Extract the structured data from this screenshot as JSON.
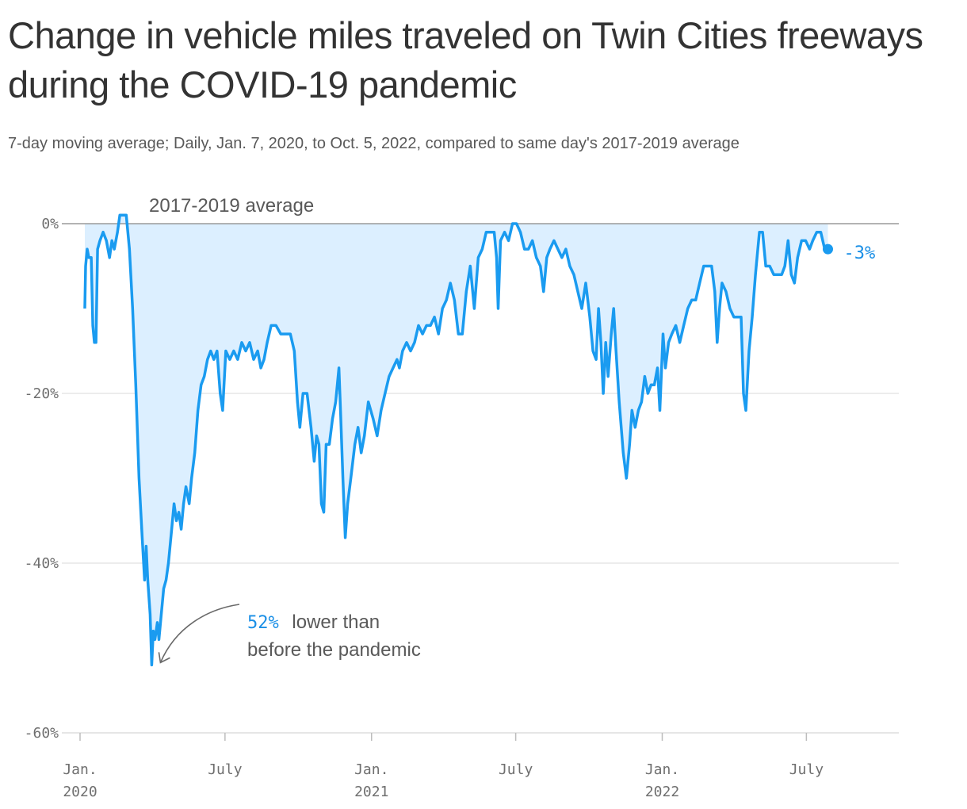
{
  "title": "Change in vehicle miles traveled on Twin Cities freeways during the COVID-19 pandemic",
  "subtitle": "7-day moving average; Daily, Jan. 7, 2020, to Oct. 5, 2022, compared to same day's 2017-2019 average",
  "colors": {
    "line": "#1a9bf0",
    "area": "#dcefff",
    "grid": "#e0e0e0",
    "baseline": "#9a9a9a",
    "text": "#333333",
    "muted": "#6f6f6f"
  },
  "chart_data": {
    "type": "area",
    "x_axis": {
      "start": "2020-01-01",
      "end": "2022-10-31",
      "ticks": [
        {
          "date": "2020-01-01",
          "label": "Jan.",
          "sublabel": "2020"
        },
        {
          "date": "2020-07-01",
          "label": "July",
          "sublabel": ""
        },
        {
          "date": "2021-01-01",
          "label": "Jan.",
          "sublabel": "2021"
        },
        {
          "date": "2021-07-01",
          "label": "July",
          "sublabel": ""
        },
        {
          "date": "2022-01-01",
          "label": "Jan.",
          "sublabel": "2022"
        },
        {
          "date": "2022-07-01",
          "label": "July",
          "sublabel": ""
        }
      ]
    },
    "y_axis": {
      "unit": "%",
      "ylim": [
        -60,
        0
      ],
      "ticks": [
        {
          "value": 0,
          "label": "0%"
        },
        {
          "value": -20,
          "label": "-20%"
        },
        {
          "value": -40,
          "label": "-40%"
        },
        {
          "value": -60,
          "label": "-60%"
        }
      ]
    },
    "baseline_label": "2017-2019 average",
    "series": [
      {
        "points": [
          [
            "2020-01-07",
            -10
          ],
          [
            "2020-01-08",
            -5
          ],
          [
            "2020-01-10",
            -3
          ],
          [
            "2020-01-12",
            -4
          ],
          [
            "2020-01-15",
            -4
          ],
          [
            "2020-01-17",
            -12
          ],
          [
            "2020-01-19",
            -14
          ],
          [
            "2020-01-21",
            -14
          ],
          [
            "2020-01-23",
            -3
          ],
          [
            "2020-01-26",
            -2
          ],
          [
            "2020-01-30",
            -1
          ],
          [
            "2020-02-03",
            -2
          ],
          [
            "2020-02-07",
            -4
          ],
          [
            "2020-02-10",
            -2
          ],
          [
            "2020-02-13",
            -3
          ],
          [
            "2020-02-17",
            -1
          ],
          [
            "2020-02-20",
            1
          ],
          [
            "2020-02-24",
            1
          ],
          [
            "2020-02-28",
            1
          ],
          [
            "2020-03-03",
            -3
          ],
          [
            "2020-03-07",
            -10
          ],
          [
            "2020-03-11",
            -19
          ],
          [
            "2020-03-15",
            -30
          ],
          [
            "2020-03-19",
            -37
          ],
          [
            "2020-03-22",
            -42
          ],
          [
            "2020-03-24",
            -38
          ],
          [
            "2020-03-26",
            -42
          ],
          [
            "2020-03-29",
            -46
          ],
          [
            "2020-03-31",
            -52
          ],
          [
            "2020-04-02",
            -48
          ],
          [
            "2020-04-04",
            -49
          ],
          [
            "2020-04-07",
            -47
          ],
          [
            "2020-04-09",
            -49
          ],
          [
            "2020-04-12",
            -46
          ],
          [
            "2020-04-15",
            -43
          ],
          [
            "2020-04-18",
            -42
          ],
          [
            "2020-04-21",
            -40
          ],
          [
            "2020-04-25",
            -36
          ],
          [
            "2020-04-28",
            -33
          ],
          [
            "2020-05-01",
            -35
          ],
          [
            "2020-05-04",
            -34
          ],
          [
            "2020-05-07",
            -36
          ],
          [
            "2020-05-10",
            -33
          ],
          [
            "2020-05-13",
            -31
          ],
          [
            "2020-05-17",
            -33
          ],
          [
            "2020-05-20",
            -30
          ],
          [
            "2020-05-24",
            -27
          ],
          [
            "2020-05-28",
            -22
          ],
          [
            "2020-06-01",
            -19
          ],
          [
            "2020-06-05",
            -18
          ],
          [
            "2020-06-09",
            -16
          ],
          [
            "2020-06-13",
            -15
          ],
          [
            "2020-06-17",
            -16
          ],
          [
            "2020-06-21",
            -15
          ],
          [
            "2020-06-25",
            -20
          ],
          [
            "2020-06-28",
            -22
          ],
          [
            "2020-07-02",
            -15
          ],
          [
            "2020-07-07",
            -16
          ],
          [
            "2020-07-12",
            -15
          ],
          [
            "2020-07-17",
            -16
          ],
          [
            "2020-07-22",
            -14
          ],
          [
            "2020-07-27",
            -15
          ],
          [
            "2020-08-01",
            -14
          ],
          [
            "2020-08-06",
            -16
          ],
          [
            "2020-08-11",
            -15
          ],
          [
            "2020-08-15",
            -17
          ],
          [
            "2020-08-19",
            -16
          ],
          [
            "2020-08-23",
            -14
          ],
          [
            "2020-08-28",
            -12
          ],
          [
            "2020-09-03",
            -12
          ],
          [
            "2020-09-09",
            -13
          ],
          [
            "2020-09-15",
            -13
          ],
          [
            "2020-09-21",
            -13
          ],
          [
            "2020-09-26",
            -15
          ],
          [
            "2020-09-30",
            -21
          ],
          [
            "2020-10-03",
            -24
          ],
          [
            "2020-10-07",
            -20
          ],
          [
            "2020-10-12",
            -20
          ],
          [
            "2020-10-17",
            -24
          ],
          [
            "2020-10-21",
            -28
          ],
          [
            "2020-10-24",
            -25
          ],
          [
            "2020-10-27",
            -26
          ],
          [
            "2020-10-30",
            -33
          ],
          [
            "2020-11-02",
            -34
          ],
          [
            "2020-11-05",
            -26
          ],
          [
            "2020-11-09",
            -26
          ],
          [
            "2020-11-13",
            -23
          ],
          [
            "2020-11-17",
            -21
          ],
          [
            "2020-11-21",
            -17
          ],
          [
            "2020-11-23",
            -22
          ],
          [
            "2020-11-26",
            -30
          ],
          [
            "2020-11-29",
            -37
          ],
          [
            "2020-12-02",
            -33
          ],
          [
            "2020-12-06",
            -30
          ],
          [
            "2020-12-11",
            -26
          ],
          [
            "2020-12-15",
            -24
          ],
          [
            "2020-12-19",
            -27
          ],
          [
            "2020-12-23",
            -25
          ],
          [
            "2020-12-28",
            -21
          ],
          [
            "2021-01-03",
            -23
          ],
          [
            "2021-01-08",
            -25
          ],
          [
            "2021-01-13",
            -22
          ],
          [
            "2021-01-18",
            -20
          ],
          [
            "2021-01-23",
            -18
          ],
          [
            "2021-01-28",
            -17
          ],
          [
            "2021-02-02",
            -16
          ],
          [
            "2021-02-05",
            -17
          ],
          [
            "2021-02-09",
            -15
          ],
          [
            "2021-02-14",
            -14
          ],
          [
            "2021-02-19",
            -15
          ],
          [
            "2021-02-24",
            -14
          ],
          [
            "2021-03-01",
            -12
          ],
          [
            "2021-03-06",
            -13
          ],
          [
            "2021-03-11",
            -12
          ],
          [
            "2021-03-16",
            -12
          ],
          [
            "2021-03-21",
            -11
          ],
          [
            "2021-03-26",
            -13
          ],
          [
            "2021-03-31",
            -10
          ],
          [
            "2021-04-05",
            -9
          ],
          [
            "2021-04-10",
            -7
          ],
          [
            "2021-04-15",
            -9
          ],
          [
            "2021-04-20",
            -13
          ],
          [
            "2021-04-25",
            -13
          ],
          [
            "2021-04-30",
            -8
          ],
          [
            "2021-05-05",
            -5
          ],
          [
            "2021-05-10",
            -10
          ],
          [
            "2021-05-15",
            -4
          ],
          [
            "2021-05-20",
            -3
          ],
          [
            "2021-05-25",
            -1
          ],
          [
            "2021-05-30",
            -1
          ],
          [
            "2021-06-04",
            -1
          ],
          [
            "2021-06-07",
            -4
          ],
          [
            "2021-06-09",
            -10
          ],
          [
            "2021-06-12",
            -2
          ],
          [
            "2021-06-17",
            -1
          ],
          [
            "2021-06-22",
            -2
          ],
          [
            "2021-06-27",
            0
          ],
          [
            "2021-07-02",
            0
          ],
          [
            "2021-07-07",
            -1
          ],
          [
            "2021-07-12",
            -3
          ],
          [
            "2021-07-17",
            -3
          ],
          [
            "2021-07-22",
            -2
          ],
          [
            "2021-07-27",
            -4
          ],
          [
            "2021-08-01",
            -5
          ],
          [
            "2021-08-05",
            -8
          ],
          [
            "2021-08-09",
            -4
          ],
          [
            "2021-08-13",
            -3
          ],
          [
            "2021-08-18",
            -2
          ],
          [
            "2021-08-23",
            -3
          ],
          [
            "2021-08-28",
            -4
          ],
          [
            "2021-09-02",
            -3
          ],
          [
            "2021-09-07",
            -5
          ],
          [
            "2021-09-12",
            -6
          ],
          [
            "2021-09-17",
            -8
          ],
          [
            "2021-09-22",
            -10
          ],
          [
            "2021-09-27",
            -7
          ],
          [
            "2021-10-02",
            -11
          ],
          [
            "2021-10-06",
            -15
          ],
          [
            "2021-10-10",
            -16
          ],
          [
            "2021-10-13",
            -10
          ],
          [
            "2021-10-16",
            -14
          ],
          [
            "2021-10-19",
            -20
          ],
          [
            "2021-10-22",
            -14
          ],
          [
            "2021-10-25",
            -18
          ],
          [
            "2021-10-29",
            -13
          ],
          [
            "2021-11-01",
            -10
          ],
          [
            "2021-11-04",
            -15
          ],
          [
            "2021-11-08",
            -21
          ],
          [
            "2021-11-13",
            -27
          ],
          [
            "2021-11-17",
            -30
          ],
          [
            "2021-11-21",
            -26
          ],
          [
            "2021-11-24",
            -22
          ],
          [
            "2021-11-28",
            -24
          ],
          [
            "2021-12-02",
            -22
          ],
          [
            "2021-12-06",
            -21
          ],
          [
            "2021-12-10",
            -18
          ],
          [
            "2021-12-14",
            -20
          ],
          [
            "2021-12-18",
            -19
          ],
          [
            "2021-12-22",
            -19
          ],
          [
            "2021-12-26",
            -17
          ],
          [
            "2021-12-29",
            -22
          ],
          [
            "2022-01-02",
            -13
          ],
          [
            "2022-01-05",
            -17
          ],
          [
            "2022-01-09",
            -14
          ],
          [
            "2022-01-13",
            -13
          ],
          [
            "2022-01-18",
            -12
          ],
          [
            "2022-01-23",
            -14
          ],
          [
            "2022-01-28",
            -12
          ],
          [
            "2022-02-02",
            -10
          ],
          [
            "2022-02-07",
            -9
          ],
          [
            "2022-02-12",
            -9
          ],
          [
            "2022-02-17",
            -7
          ],
          [
            "2022-02-22",
            -5
          ],
          [
            "2022-02-27",
            -5
          ],
          [
            "2022-03-04",
            -5
          ],
          [
            "2022-03-08",
            -8
          ],
          [
            "2022-03-11",
            -14
          ],
          [
            "2022-03-14",
            -10
          ],
          [
            "2022-03-17",
            -7
          ],
          [
            "2022-03-22",
            -8
          ],
          [
            "2022-03-27",
            -10
          ],
          [
            "2022-04-01",
            -11
          ],
          [
            "2022-04-06",
            -11
          ],
          [
            "2022-04-10",
            -11
          ],
          [
            "2022-04-13",
            -20
          ],
          [
            "2022-04-16",
            -22
          ],
          [
            "2022-04-20",
            -15
          ],
          [
            "2022-04-24",
            -11
          ],
          [
            "2022-04-28",
            -6
          ],
          [
            "2022-05-03",
            -1
          ],
          [
            "2022-05-07",
            -1
          ],
          [
            "2022-05-11",
            -5
          ],
          [
            "2022-05-16",
            -5
          ],
          [
            "2022-05-21",
            -6
          ],
          [
            "2022-05-26",
            -6
          ],
          [
            "2022-05-31",
            -6
          ],
          [
            "2022-06-04",
            -5
          ],
          [
            "2022-06-08",
            -2
          ],
          [
            "2022-06-12",
            -6
          ],
          [
            "2022-06-16",
            -7
          ],
          [
            "2022-06-20",
            -4
          ],
          [
            "2022-06-25",
            -2
          ],
          [
            "2022-06-30",
            -2
          ],
          [
            "2022-07-05",
            -3
          ],
          [
            "2022-07-09",
            -2
          ],
          [
            "2022-07-14",
            -1
          ],
          [
            "2022-07-19",
            -1
          ],
          [
            "2022-07-24",
            -3
          ],
          [
            "2022-07-28",
            -3
          ]
        ]
      }
    ],
    "annotations": [
      {
        "highlight": "52%",
        "line1": "lower than",
        "line2": "before the pandemic",
        "target_date": "2020-03-31",
        "target_value": -52
      },
      {
        "label": "-3%",
        "date": "2022-07-28",
        "value": -3
      }
    ]
  }
}
